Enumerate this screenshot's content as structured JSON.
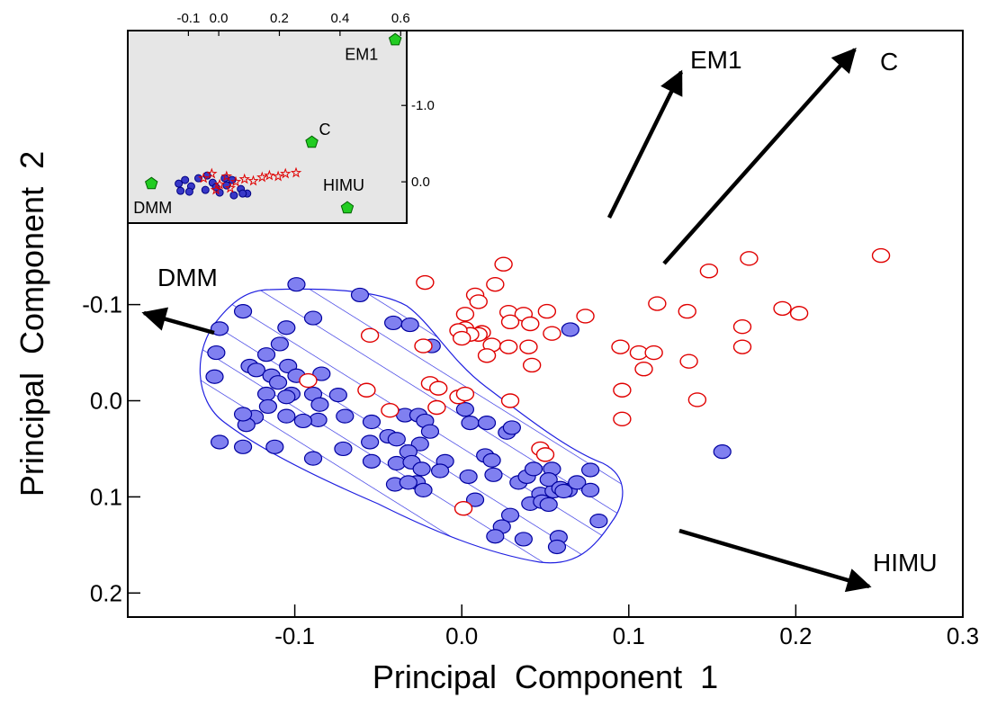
{
  "chart_data": [
    {
      "type": "scatter",
      "x_label": "Principal Component 1",
      "y_label": "Principal Component 2",
      "xlim": [
        -0.2,
        0.3
      ],
      "xticks": [
        -0.1,
        {
          "value": 0,
          "label": "0.0"
        },
        0.1,
        0.2,
        0.3
      ],
      "ylim": [
        0.225,
        -0.385
      ],
      "yticks": [
        -0.1,
        {
          "value": 0,
          "label": "0.0"
        },
        0.1,
        0.2
      ],
      "grid": false,
      "annotations": [
        "EM1",
        "C",
        "DMM",
        "HIMU"
      ],
      "series": [
        {
          "color": "#0000a0",
          "fill": "#8080f0",
          "marker": "ellipse-filled",
          "x": [
            -0.099,
            -0.131,
            -0.061,
            -0.089,
            -0.105,
            -0.041,
            -0.031,
            -0.018,
            0.065,
            -0.145,
            -0.109,
            -0.117,
            -0.147,
            -0.104,
            -0.127,
            -0.123,
            -0.114,
            -0.099,
            -0.084,
            -0.148,
            -0.11,
            -0.102,
            -0.117,
            -0.105,
            -0.089,
            -0.085,
            -0.074,
            -0.116,
            -0.07,
            -0.086,
            -0.124,
            -0.129,
            -0.131,
            -0.105,
            -0.095,
            -0.054,
            -0.034,
            -0.026,
            -0.022,
            -0.044,
            -0.055,
            -0.039,
            -0.025,
            -0.032,
            -0.019,
            0.002,
            0.005,
            0.015,
            0.027,
            0.03,
            -0.131,
            -0.112,
            -0.145,
            -0.089,
            -0.071,
            -0.054,
            -0.039,
            -0.03,
            -0.024,
            -0.01,
            -0.013,
            -0.027,
            -0.04,
            -0.023,
            0.014,
            0.018,
            0.019,
            0.004,
            0.034,
            0.039,
            0.043,
            0.054,
            0.047,
            0.055,
            0.064,
            0.069,
            0.077,
            0.052,
            0.059,
            0.077,
            0.041,
            0.048,
            0.061,
            0.052,
            0.029,
            0.024,
            0.02,
            0.037,
            0.058,
            0.057,
            0.082,
            0.156,
            0.008,
            -0.032
          ],
          "values": [
            -0.121,
            -0.093,
            -0.11,
            -0.086,
            -0.076,
            -0.081,
            -0.079,
            -0.057,
            -0.074,
            -0.075,
            -0.059,
            -0.048,
            -0.05,
            -0.036,
            -0.036,
            -0.032,
            -0.026,
            -0.026,
            -0.028,
            -0.025,
            -0.019,
            -0.007,
            -0.007,
            -0.004,
            -0.007,
            0.004,
            -0.006,
            0.006,
            0.016,
            0.02,
            0.017,
            0.025,
            0.014,
            0.016,
            0.021,
            0.022,
            0.015,
            0.015,
            0.021,
            0.037,
            0.043,
            0.04,
            0.045,
            0.053,
            0.032,
            0.009,
            0.023,
            0.023,
            0.033,
            0.028,
            0.048,
            0.048,
            0.043,
            0.06,
            0.05,
            0.063,
            0.065,
            0.064,
            0.071,
            0.063,
            0.073,
            0.085,
            0.087,
            0.093,
            0.057,
            0.062,
            0.077,
            0.079,
            0.085,
            0.079,
            0.071,
            0.071,
            0.097,
            0.094,
            0.093,
            0.085,
            0.072,
            0.082,
            0.091,
            0.093,
            0.107,
            0.105,
            0.094,
            0.108,
            0.119,
            0.131,
            0.141,
            0.144,
            0.142,
            0.152,
            0.125,
            0.053,
            0.103,
            0.085
          ]
        },
        {
          "color": "#e00000",
          "fill": "#ffffff",
          "marker": "ellipse-open",
          "x": [
            0.025,
            -0.022,
            0.02,
            0.008,
            0.01,
            0.002,
            0.028,
            0.037,
            0.051,
            0.074,
            0.029,
            0.041,
            0.002,
            0.012,
            0.01,
            0.005,
            -0.002,
            0.0,
            -0.055,
            -0.023,
            0.018,
            0.028,
            0.04,
            0.054,
            0.015,
            0.042,
            0.095,
            0.106,
            0.115,
            0.109,
            0.136,
            0.168,
            0.168,
            0.135,
            0.117,
            0.148,
            0.172,
            0.251,
            0.192,
            0.202,
            0.096,
            0.096,
            0.141,
            -0.057,
            -0.043,
            -0.019,
            -0.014,
            -0.015,
            -0.002,
            0.002,
            0.029,
            0.047,
            0.05,
            0.001,
            -0.092
          ],
          "values": [
            -0.142,
            -0.123,
            -0.121,
            -0.11,
            -0.103,
            -0.09,
            -0.092,
            -0.09,
            -0.093,
            -0.088,
            -0.082,
            -0.08,
            -0.075,
            -0.071,
            -0.069,
            -0.069,
            -0.073,
            -0.065,
            -0.068,
            -0.057,
            -0.058,
            -0.056,
            -0.056,
            -0.07,
            -0.047,
            -0.037,
            -0.056,
            -0.05,
            -0.05,
            -0.033,
            -0.041,
            -0.056,
            -0.077,
            -0.093,
            -0.101,
            -0.135,
            -0.148,
            -0.151,
            -0.096,
            -0.091,
            -0.011,
            0.019,
            -0.001,
            -0.011,
            0.01,
            -0.018,
            -0.013,
            0.007,
            -0.004,
            -0.007,
            0.0,
            0.05,
            0.056,
            0.112,
            -0.021
          ]
        }
      ]
    },
    {
      "type": "scatter",
      "xlim": [
        -0.3,
        0.62
      ],
      "xticks": [
        -0.1,
        {
          "value": 0,
          "label": "0.0"
        },
        0.2,
        0.4,
        0.6
      ],
      "ylim": [
        0.54,
        -1.98
      ],
      "yticks": [
        {
          "value": 0,
          "label": "0.0"
        },
        {
          "value": -1,
          "label": "-1.0"
        }
      ],
      "background": "#e6e6e6",
      "series": [
        {
          "color": "#000080",
          "fill": "#3838c8",
          "marker": "circle",
          "x": [
            -0.132,
            -0.111,
            -0.091,
            -0.067,
            -0.044,
            -0.02,
            0.003,
            0.026,
            0.05,
            0.073,
            -0.097,
            -0.038,
            0.02,
            0.094,
            -0.126,
            -0.009,
            0.044,
            0.079
          ],
          "values": [
            0.024,
            -0.024,
            0.059,
            -0.047,
            0.106,
            0.012,
            0.141,
            0.047,
            0.176,
            0.094,
            0.129,
            -0.082,
            -0.047,
            0.153,
            0.118,
            0.071,
            -0.024,
            0.153
          ]
        },
        {
          "color": "#e00000",
          "fill": "none",
          "marker": "star",
          "x": [
            -0.05,
            -0.023,
            0.003,
            0.026,
            0.056,
            0.085,
            0.114,
            0.143,
            0.167,
            0.196,
            0.22,
            0.255,
            -0.009,
            0.038
          ],
          "values": [
            -0.047,
            -0.106,
            0.035,
            -0.071,
            0.0,
            -0.035,
            -0.012,
            -0.059,
            -0.082,
            -0.071,
            -0.106,
            -0.118,
            0.106,
            0.082
          ]
        },
        {
          "color": "#006000",
          "fill": "#22cc22",
          "marker": "pentagon",
          "point_labels": [
            "DMM",
            "EM1",
            "C",
            "HIMU"
          ],
          "x": [
            -0.222,
            0.582,
            0.307,
            0.424
          ],
          "values": [
            0.024,
            -1.859,
            -0.518,
            0.341
          ]
        }
      ]
    }
  ]
}
